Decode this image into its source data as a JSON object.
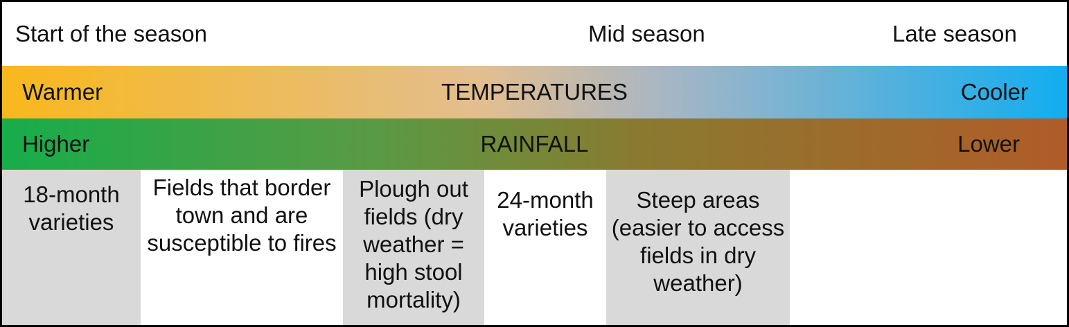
{
  "season": {
    "start": "Start of the season",
    "mid": "Mid season",
    "late": "Late season"
  },
  "temperature": {
    "left": "Warmer",
    "label": "TEMPERATURES",
    "right": "Cooler",
    "colors": [
      "#f9b81c",
      "#e3be8f",
      "#a8b6c4",
      "#12adf0"
    ]
  },
  "rainfall": {
    "left": "Higher",
    "label": "RAINFALL",
    "right": "Lower",
    "colors": [
      "#17ad4a",
      "#5a9a44",
      "#8a7a30",
      "#b05c28"
    ]
  },
  "cells": [
    {
      "text": "18-month varieties",
      "fill": "gray"
    },
    {
      "text": "Fields that border town and are susceptible to fires",
      "fill": "white"
    },
    {
      "text": "Plough out fields (dry weather = high stool mortality)",
      "fill": "gray"
    },
    {
      "text": "24-month varieties",
      "fill": "white"
    },
    {
      "text": "Steep areas (easier to access fields in dry weather)",
      "fill": "gray"
    },
    {
      "text": "",
      "fill": "white"
    }
  ]
}
